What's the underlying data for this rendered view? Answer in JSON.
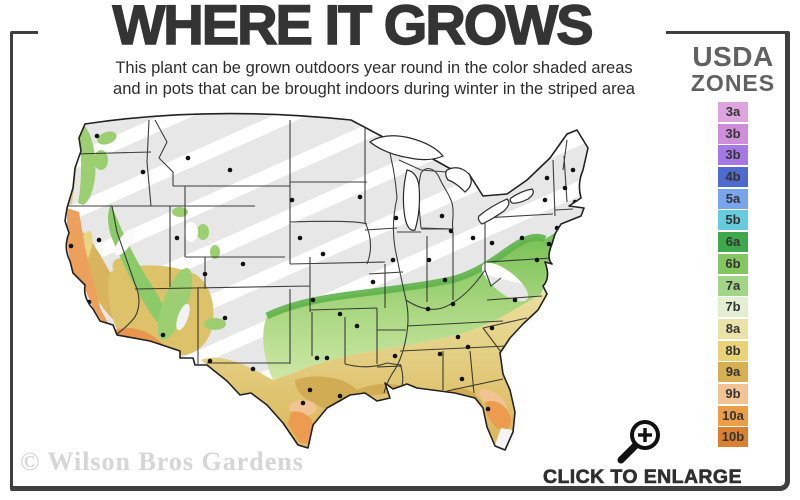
{
  "title": "WHERE IT GROWS",
  "subtitle_line1": "This plant can be grown outdoors year round in the color shaded areas",
  "subtitle_line2": "and in pots that can be brought indoors during winter in the striped area",
  "legend": {
    "title_line1": "USDA",
    "title_line2": "ZONES",
    "zones": [
      {
        "label": "3a",
        "color": "#dda4dd"
      },
      {
        "label": "3b",
        "color": "#cf8ed9"
      },
      {
        "label": "3b",
        "color": "#a678e6"
      },
      {
        "label": "4b",
        "color": "#4f6bd0"
      },
      {
        "label": "5a",
        "color": "#79a5ec"
      },
      {
        "label": "5b",
        "color": "#66cbdc"
      },
      {
        "label": "6a",
        "color": "#3fa84c"
      },
      {
        "label": "6b",
        "color": "#86c661"
      },
      {
        "label": "7a",
        "color": "#a2d587"
      },
      {
        "label": "7b",
        "color": "#e2f0d1"
      },
      {
        "label": "8a",
        "color": "#eae2a9"
      },
      {
        "label": "8b",
        "color": "#e9d277"
      },
      {
        "label": "9a",
        "color": "#d6b052"
      },
      {
        "label": "9b",
        "color": "#f2c493"
      },
      {
        "label": "10a",
        "color": "#eb9d47"
      },
      {
        "label": "10b",
        "color": "#db8030"
      }
    ]
  },
  "enlarge_label": "CLICK TO ENLARGE",
  "watermark": "© Wilson Bros Gardens",
  "map_palette": {
    "cold_striped_gray": "#e7e7e7",
    "stripe_white": "#ffffff",
    "green": "#a6d383",
    "yellow": "#e6d074",
    "gold": "#d2ab55",
    "orange": "#ec9c50",
    "salmon": "#f2c493",
    "state_border": "#2b2b2b"
  }
}
